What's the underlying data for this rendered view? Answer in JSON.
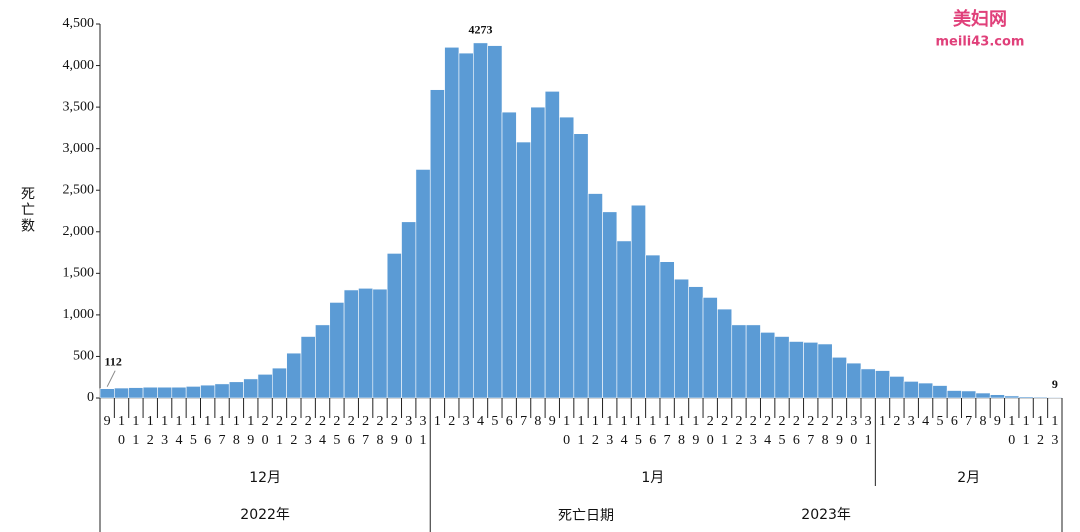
{
  "chart_data": {
    "type": "bar",
    "y_label": "死亡数",
    "x_label": "死亡日期",
    "watermark": {
      "title": "美妇网",
      "url": "meili43.com"
    },
    "color": "#5b9bd5",
    "ylim": [
      0,
      4500
    ],
    "yticks": [
      0,
      500,
      {
        "value": 1000,
        "label": "1,000"
      },
      {
        "value": 1500,
        "label": "1,500"
      },
      {
        "value": 2000,
        "label": "2,000"
      },
      {
        "value": 2500,
        "label": "2,500"
      },
      {
        "value": 3000,
        "label": "3,000"
      },
      {
        "value": 3500,
        "label": "3,500"
      },
      {
        "value": 4000,
        "label": "4,000"
      },
      {
        "value": 4500,
        "label": "4,500"
      }
    ],
    "month_labels": [
      "12月",
      "1月",
      "2月"
    ],
    "year_labels": [
      "2022年",
      "2023年"
    ],
    "categories": [
      "9",
      "10",
      "11",
      "12",
      "13",
      "14",
      "15",
      "16",
      "17",
      "18",
      "19",
      "20",
      "21",
      "22",
      "23",
      "24",
      "25",
      "26",
      "27",
      "28",
      "29",
      "30",
      "31",
      "1",
      "2",
      "3",
      "4",
      "5",
      "6",
      "7",
      "8",
      "9",
      "10",
      "11",
      "12",
      "13",
      "14",
      "15",
      "16",
      "17",
      "18",
      "19",
      "20",
      "21",
      "22",
      "23",
      "24",
      "25",
      "26",
      "27",
      "28",
      "29",
      "30",
      "31",
      "1",
      "2",
      "3",
      "4",
      "5",
      "6",
      "7",
      "8",
      "9",
      "10",
      "11",
      "12",
      "13"
    ],
    "values": [
      112,
      120,
      125,
      130,
      130,
      130,
      140,
      155,
      170,
      195,
      230,
      285,
      360,
      540,
      740,
      880,
      1150,
      1300,
      1320,
      1310,
      1740,
      2120,
      2750,
      3710,
      4220,
      4150,
      4273,
      4240,
      3440,
      3080,
      3500,
      3690,
      3380,
      3180,
      2460,
      2240,
      1890,
      2320,
      1720,
      1640,
      1430,
      1340,
      1210,
      1070,
      880,
      880,
      790,
      740,
      680,
      670,
      650,
      490,
      420,
      350,
      330,
      260,
      200,
      180,
      150,
      90,
      85,
      60,
      40,
      25,
      15,
      12,
      9
    ],
    "value_labels": [
      "112",
      null,
      null,
      null,
      null,
      null,
      null,
      null,
      null,
      null,
      null,
      null,
      null,
      null,
      null,
      null,
      null,
      null,
      null,
      null,
      null,
      null,
      null,
      null,
      null,
      null,
      "4273",
      null,
      null,
      null,
      null,
      null,
      null,
      null,
      null,
      null,
      null,
      null,
      null,
      null,
      null,
      null,
      null,
      null,
      null,
      null,
      null,
      null,
      null,
      null,
      null,
      null,
      null,
      null,
      null,
      null,
      null,
      null,
      null,
      null,
      null,
      null,
      null,
      null,
      null,
      null,
      "9"
    ]
  }
}
